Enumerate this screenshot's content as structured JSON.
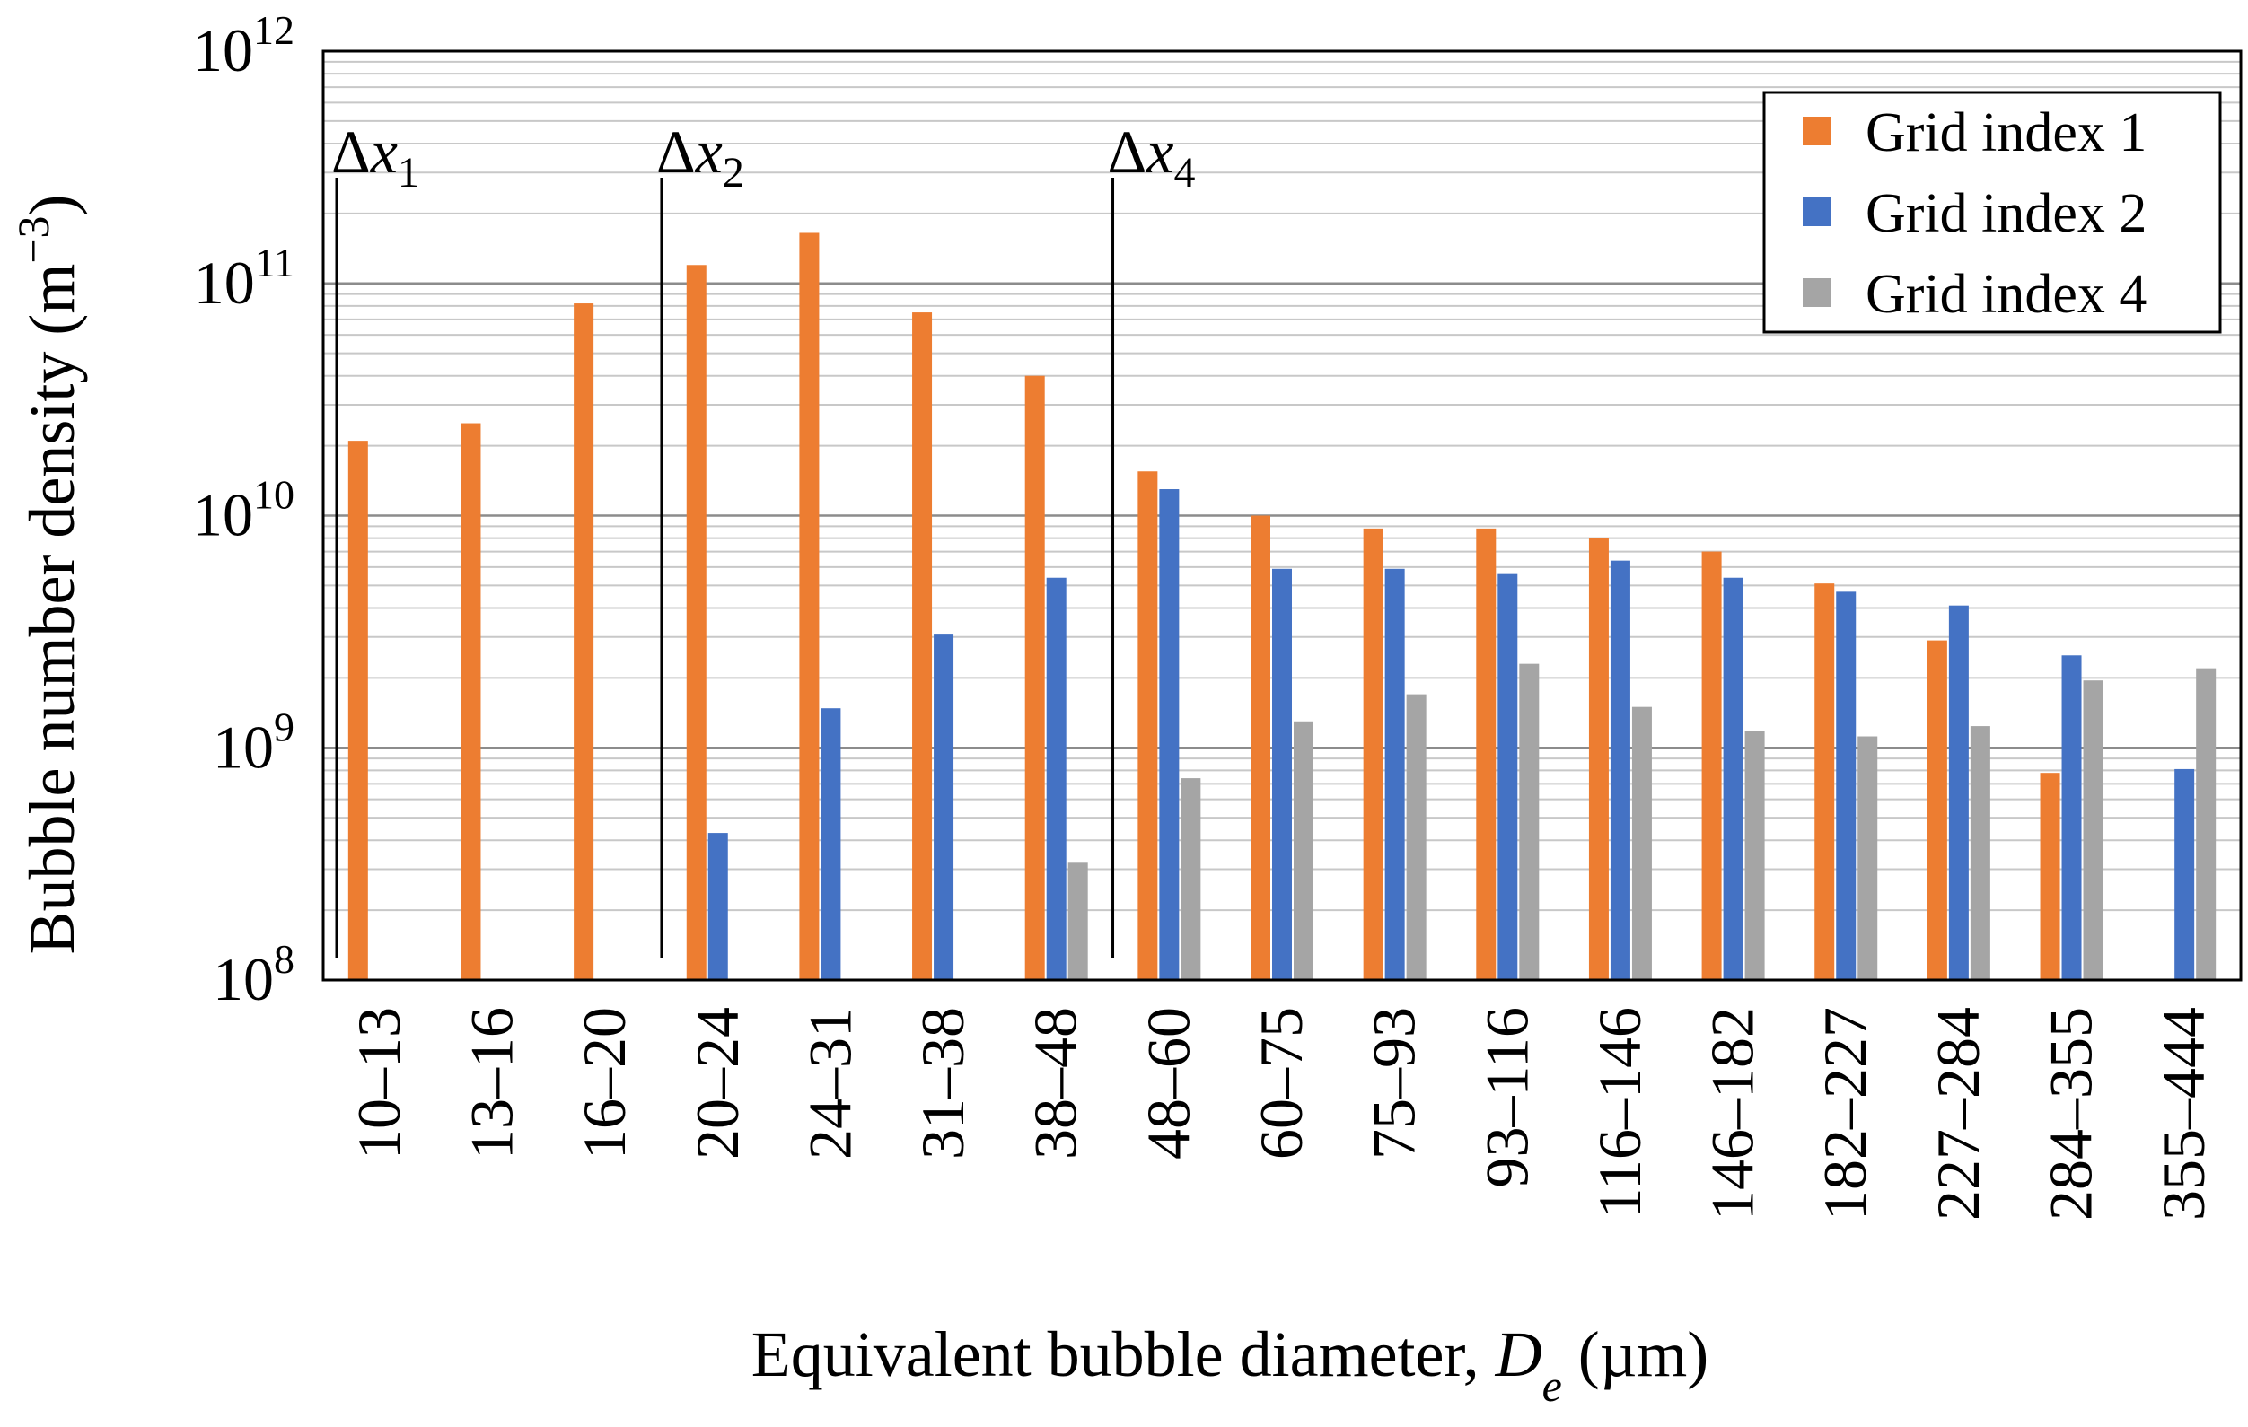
{
  "chart_data": {
    "type": "bar",
    "yscale": "log",
    "ylim": [
      100000000,
      1000000000000
    ],
    "ylabel": "Bubble number density (m−3)",
    "xlabel": "Equivalent bubble diameter, De (µm)",
    "categories": [
      "10–13",
      "13–16",
      "16–20",
      "20–24",
      "24–31",
      "31–38",
      "38–48",
      "48–60",
      "60–75",
      "75–93",
      "93–116",
      "116–146",
      "146–182",
      "182–227",
      "227–284",
      "284–355",
      "355–444"
    ],
    "series": [
      {
        "name": "Grid index 1",
        "color": "#ED7D31",
        "values": [
          21000000000,
          25000000000,
          82000000000,
          120000000000,
          165000000000,
          75000000000,
          40000000000,
          15500000000,
          10000000000,
          8800000000,
          8800000000,
          8000000000,
          7000000000,
          5100000000,
          2900000000,
          780000000,
          null
        ]
      },
      {
        "name": "Grid index 2",
        "color": "#4472C4",
        "values": [
          null,
          null,
          null,
          430000000,
          1480000000,
          3100000000,
          5400000000,
          13000000000,
          5900000000,
          5900000000,
          5600000000,
          6400000000,
          5400000000,
          4700000000,
          4100000000,
          2500000000,
          810000000
        ]
      },
      {
        "name": "Grid index 4",
        "color": "#A5A5A5",
        "values": [
          null,
          null,
          null,
          null,
          null,
          null,
          320000000,
          740000000,
          1300000000,
          1700000000,
          2300000000,
          1500000000,
          1180000000,
          1120000000,
          1240000000,
          1950000000,
          2200000000
        ]
      }
    ],
    "ticks": [
      {
        "base": "10",
        "exp": "8",
        "value": 100000000
      },
      {
        "base": "10",
        "exp": "9",
        "value": 1000000000
      },
      {
        "base": "10",
        "exp": "10",
        "value": 10000000000
      },
      {
        "base": "10",
        "exp": "11",
        "value": 100000000000
      },
      {
        "base": "10",
        "exp": "12",
        "value": 1000000000000
      }
    ],
    "markers": [
      {
        "symbol": "Δx",
        "sub": "1",
        "after_category": -1
      },
      {
        "symbol": "Δx",
        "sub": "2",
        "after_category": 2
      },
      {
        "symbol": "Δx",
        "sub": "4",
        "after_category": 6
      }
    ],
    "legend_position": "top-right",
    "grid": "horizontal major and minor"
  }
}
